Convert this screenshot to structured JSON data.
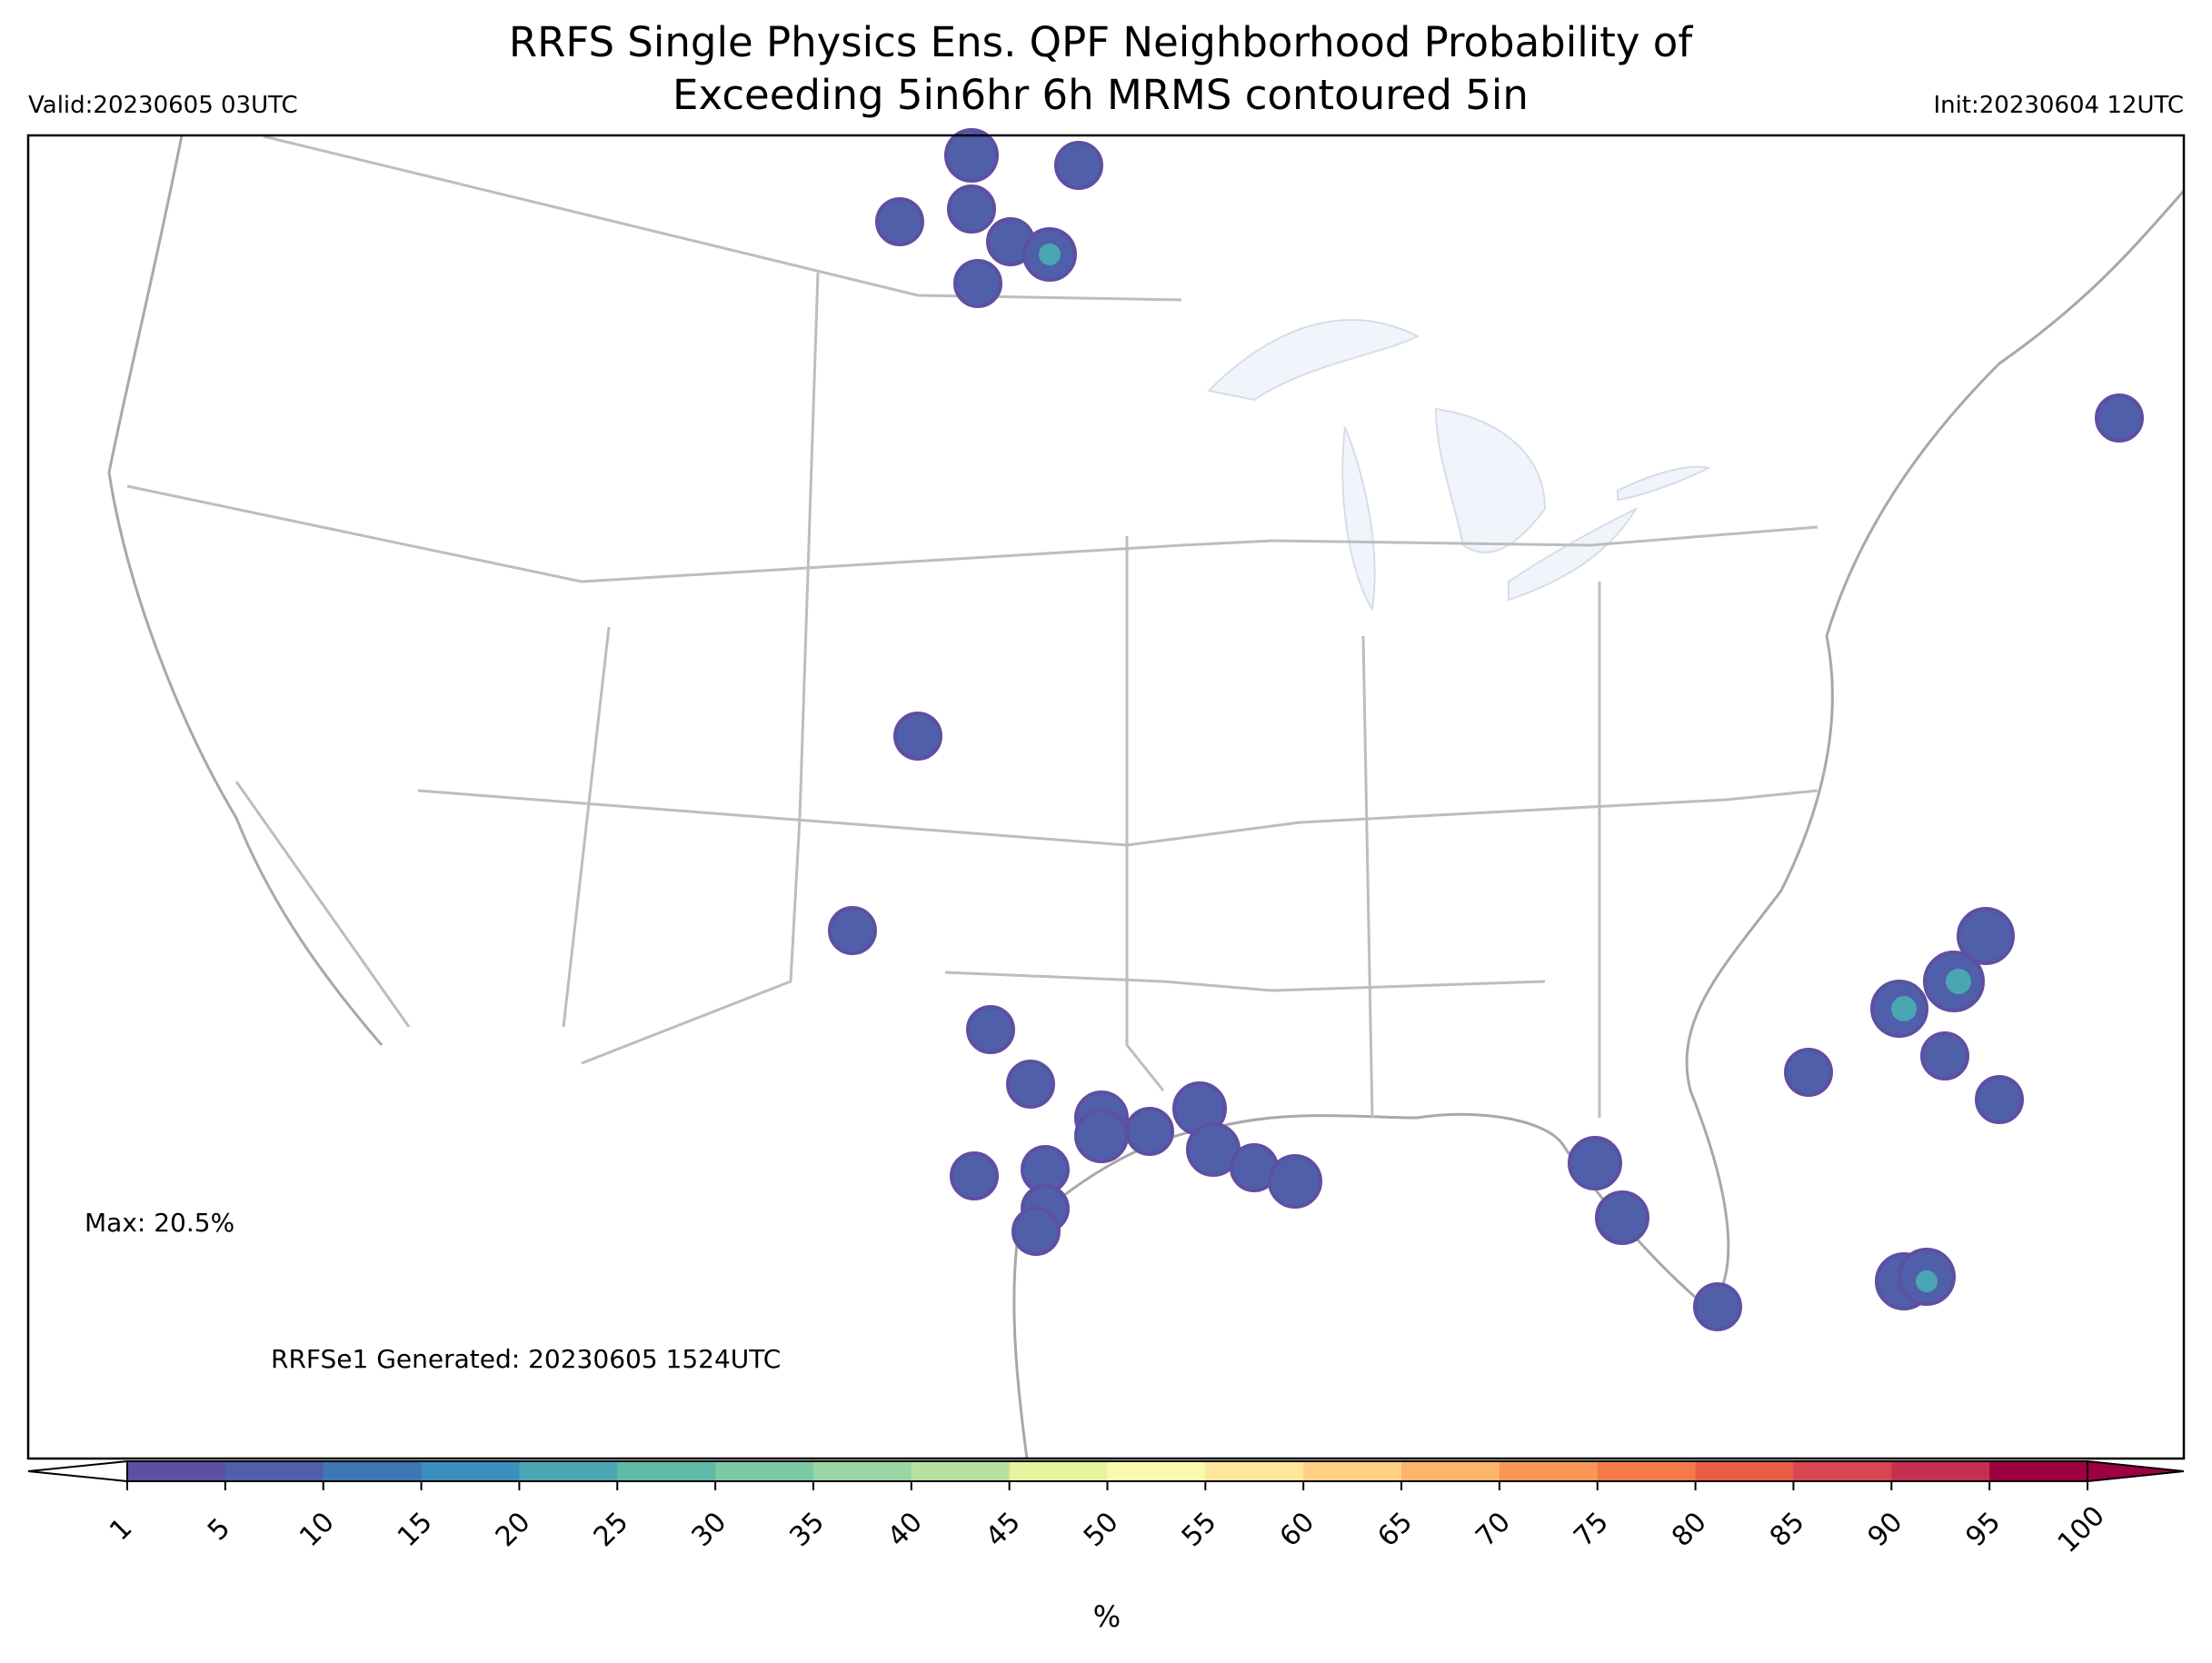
{
  "header": {
    "title_line1": "RRFS Single Physics Ens. QPF Neighborhood Probability of",
    "title_line2": "Exceeding 5in6hr 6h MRMS contoured 5in",
    "valid": "Valid:20230605 03UTC",
    "init": "Init:20230604 12UTC"
  },
  "map": {
    "max_label": "Max: 20.5%",
    "generated": "RRFSe1 Generated: 20230605 1524UTC"
  },
  "colorbar": {
    "ticks": [
      1,
      5,
      10,
      15,
      20,
      25,
      30,
      35,
      40,
      45,
      50,
      55,
      60,
      65,
      70,
      75,
      80,
      85,
      90,
      95,
      100
    ],
    "colors": [
      "#5e4fa2",
      "#4f5fa9",
      "#3f77b4",
      "#3c8fbd",
      "#4aa6b2",
      "#5fbaa8",
      "#7ccaa5",
      "#9ad5a4",
      "#b6e1a0",
      "#e6f49d",
      "#fbf8b0",
      "#fee69a",
      "#fed183",
      "#fdb56b",
      "#fa9656",
      "#f57a4a",
      "#e85e44",
      "#d84652",
      "#c4304f",
      "#9e0142"
    ],
    "label": "%"
  }
}
